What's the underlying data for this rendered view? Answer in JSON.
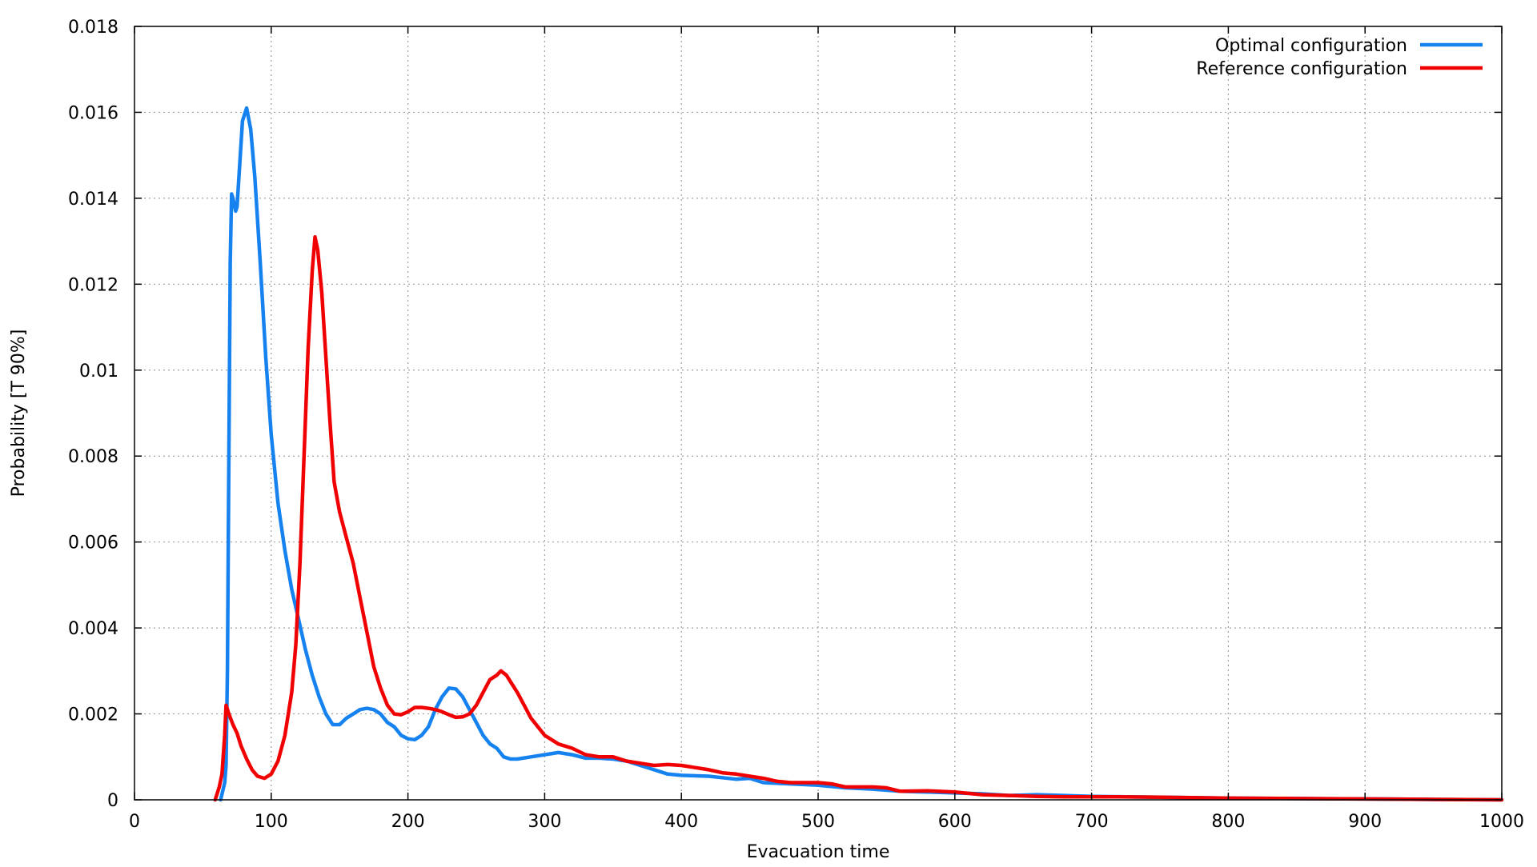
{
  "chart_data": {
    "type": "line",
    "title": "",
    "xlabel": "Evacuation time",
    "ylabel": "Probability [T 90%]",
    "xlim": [
      0,
      1000
    ],
    "ylim": [
      0,
      0.018
    ],
    "grid": true,
    "legend_position": "top-right",
    "x_ticks": [
      "0",
      "100",
      "200",
      "300",
      "400",
      "500",
      "600",
      "700",
      "800",
      "900",
      "1000"
    ],
    "y_ticks": [
      "0",
      "0.002",
      "0.004",
      "0.006",
      "0.008",
      "0.01",
      "0.012",
      "0.014",
      "0.016",
      "0.018"
    ],
    "series": [
      {
        "name": "Optimal configuration",
        "color": "#1582f0",
        "points": [
          [
            63,
            0
          ],
          [
            66,
            0.0004
          ],
          [
            67,
            0.0008
          ],
          [
            68,
            0.003
          ],
          [
            69,
            0.008
          ],
          [
            70,
            0.0125
          ],
          [
            71,
            0.0141
          ],
          [
            72,
            0.014
          ],
          [
            74,
            0.0137
          ],
          [
            75,
            0.0138
          ],
          [
            77,
            0.0148
          ],
          [
            79,
            0.0158
          ],
          [
            82,
            0.0161
          ],
          [
            85,
            0.0156
          ],
          [
            88,
            0.0145
          ],
          [
            92,
            0.0125
          ],
          [
            96,
            0.0103
          ],
          [
            100,
            0.0085
          ],
          [
            105,
            0.0069
          ],
          [
            110,
            0.0058
          ],
          [
            115,
            0.0049
          ],
          [
            120,
            0.0042
          ],
          [
            125,
            0.0035
          ],
          [
            130,
            0.0029
          ],
          [
            135,
            0.0024
          ],
          [
            140,
            0.002
          ],
          [
            145,
            0.00175
          ],
          [
            150,
            0.00175
          ],
          [
            155,
            0.0019
          ],
          [
            160,
            0.002
          ],
          [
            165,
            0.0021
          ],
          [
            170,
            0.00213
          ],
          [
            175,
            0.0021
          ],
          [
            180,
            0.002
          ],
          [
            185,
            0.0018
          ],
          [
            190,
            0.0017
          ],
          [
            195,
            0.0015
          ],
          [
            200,
            0.00142
          ],
          [
            205,
            0.0014
          ],
          [
            210,
            0.0015
          ],
          [
            215,
            0.0017
          ],
          [
            220,
            0.0021
          ],
          [
            225,
            0.0024
          ],
          [
            230,
            0.0026
          ],
          [
            235,
            0.00258
          ],
          [
            240,
            0.0024
          ],
          [
            245,
            0.0021
          ],
          [
            250,
            0.0018
          ],
          [
            255,
            0.0015
          ],
          [
            260,
            0.0013
          ],
          [
            265,
            0.0012
          ],
          [
            270,
            0.001
          ],
          [
            275,
            0.00095
          ],
          [
            280,
            0.00095
          ],
          [
            290,
            0.001
          ],
          [
            300,
            0.00105
          ],
          [
            310,
            0.0011
          ],
          [
            320,
            0.00105
          ],
          [
            330,
            0.00097
          ],
          [
            340,
            0.00097
          ],
          [
            350,
            0.00095
          ],
          [
            360,
            0.0009
          ],
          [
            370,
            0.0008
          ],
          [
            380,
            0.0007
          ],
          [
            390,
            0.0006
          ],
          [
            400,
            0.00057
          ],
          [
            420,
            0.00055
          ],
          [
            440,
            0.00048
          ],
          [
            450,
            0.0005
          ],
          [
            460,
            0.0004
          ],
          [
            480,
            0.00037
          ],
          [
            500,
            0.00034
          ],
          [
            520,
            0.00028
          ],
          [
            540,
            0.00025
          ],
          [
            560,
            0.0002
          ],
          [
            580,
            0.00018
          ],
          [
            600,
            0.00016
          ],
          [
            620,
            0.00014
          ],
          [
            640,
            0.0001
          ],
          [
            660,
            0.00012
          ],
          [
            680,
            0.0001
          ],
          [
            700,
            8e-05
          ],
          [
            750,
            6e-05
          ],
          [
            800,
            4e-05
          ],
          [
            850,
            3e-05
          ],
          [
            900,
            2e-05
          ],
          [
            950,
            1e-05
          ],
          [
            1000,
            0
          ]
        ]
      },
      {
        "name": "Reference configuration",
        "color": "#f00000",
        "points": [
          [
            59,
            0
          ],
          [
            62,
            0.0003
          ],
          [
            64,
            0.0006
          ],
          [
            66,
            0.0015
          ],
          [
            67,
            0.0022
          ],
          [
            69,
            0.002
          ],
          [
            72,
            0.00175
          ],
          [
            75,
            0.00155
          ],
          [
            78,
            0.00125
          ],
          [
            82,
            0.00095
          ],
          [
            86,
            0.0007
          ],
          [
            90,
            0.00055
          ],
          [
            95,
            0.0005
          ],
          [
            100,
            0.0006
          ],
          [
            105,
            0.0009
          ],
          [
            110,
            0.0015
          ],
          [
            115,
            0.0025
          ],
          [
            118,
            0.0036
          ],
          [
            121,
            0.0055
          ],
          [
            124,
            0.008
          ],
          [
            127,
            0.0105
          ],
          [
            130,
            0.0123
          ],
          [
            132,
            0.0131
          ],
          [
            134,
            0.0128
          ],
          [
            137,
            0.0118
          ],
          [
            140,
            0.0103
          ],
          [
            143,
            0.0088
          ],
          [
            146,
            0.0074
          ],
          [
            150,
            0.0067
          ],
          [
            155,
            0.0061
          ],
          [
            160,
            0.0055
          ],
          [
            165,
            0.0047
          ],
          [
            170,
            0.0039
          ],
          [
            175,
            0.0031
          ],
          [
            180,
            0.0026
          ],
          [
            185,
            0.0022
          ],
          [
            190,
            0.002
          ],
          [
            195,
            0.00198
          ],
          [
            200,
            0.00205
          ],
          [
            205,
            0.00215
          ],
          [
            210,
            0.00215
          ],
          [
            215,
            0.00213
          ],
          [
            220,
            0.0021
          ],
          [
            225,
            0.00205
          ],
          [
            230,
            0.00198
          ],
          [
            235,
            0.00192
          ],
          [
            240,
            0.00193
          ],
          [
            245,
            0.002
          ],
          [
            250,
            0.0022
          ],
          [
            255,
            0.0025
          ],
          [
            260,
            0.0028
          ],
          [
            265,
            0.0029
          ],
          [
            268,
            0.003
          ],
          [
            272,
            0.0029
          ],
          [
            276,
            0.0027
          ],
          [
            280,
            0.0025
          ],
          [
            285,
            0.0022
          ],
          [
            290,
            0.0019
          ],
          [
            295,
            0.0017
          ],
          [
            300,
            0.0015
          ],
          [
            310,
            0.0013
          ],
          [
            320,
            0.0012
          ],
          [
            330,
            0.00105
          ],
          [
            340,
            0.001
          ],
          [
            350,
            0.001
          ],
          [
            360,
            0.0009
          ],
          [
            370,
            0.00085
          ],
          [
            380,
            0.0008
          ],
          [
            390,
            0.00082
          ],
          [
            400,
            0.0008
          ],
          [
            410,
            0.00075
          ],
          [
            420,
            0.0007
          ],
          [
            430,
            0.00063
          ],
          [
            440,
            0.0006
          ],
          [
            450,
            0.00055
          ],
          [
            460,
            0.0005
          ],
          [
            470,
            0.00043
          ],
          [
            480,
            0.0004
          ],
          [
            490,
            0.0004
          ],
          [
            500,
            0.0004
          ],
          [
            510,
            0.00037
          ],
          [
            520,
            0.0003
          ],
          [
            530,
            0.0003
          ],
          [
            540,
            0.0003
          ],
          [
            550,
            0.00028
          ],
          [
            560,
            0.0002
          ],
          [
            580,
            0.00021
          ],
          [
            600,
            0.00018
          ],
          [
            620,
            0.00012
          ],
          [
            640,
            0.0001
          ],
          [
            660,
            8e-05
          ],
          [
            680,
            7e-05
          ],
          [
            700,
            7e-05
          ],
          [
            720,
            7e-05
          ],
          [
            750,
            6e-05
          ],
          [
            800,
            4e-05
          ],
          [
            850,
            3e-05
          ],
          [
            900,
            2e-05
          ],
          [
            950,
            1e-05
          ],
          [
            1000,
            0
          ]
        ]
      }
    ]
  }
}
